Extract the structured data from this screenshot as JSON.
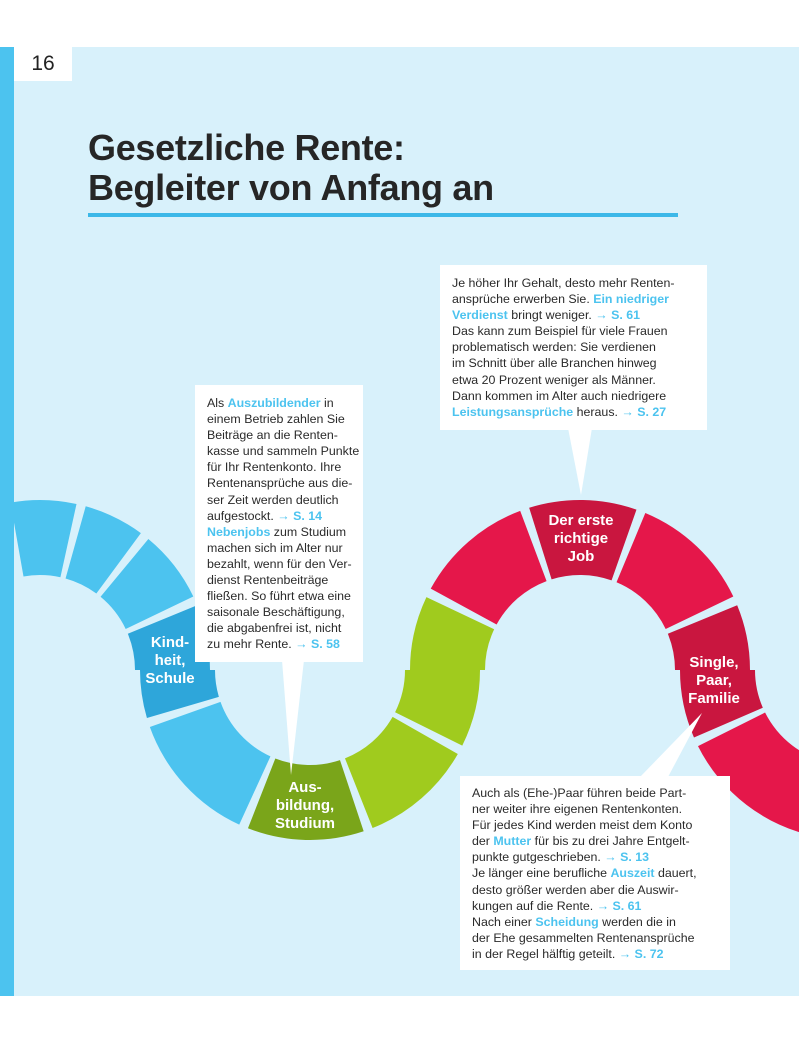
{
  "page_number": "16",
  "title": {
    "line1": "Gesetzliche Rente:",
    "line2": "Begleiter von Anfang an"
  },
  "colors": {
    "background": "#d8f1fb",
    "accent_blue": "#4cc3ef",
    "childhood": "#2ea6da",
    "education": "#7aa51a",
    "lime": "#a0cb1e",
    "red": "#e5174a",
    "dark_red": "#c9163f"
  },
  "stages": [
    {
      "label_lines": [
        "Kind-",
        "heit,",
        "Schule"
      ]
    },
    {
      "label_lines": [
        "Aus-",
        "bildung,",
        "Studium"
      ]
    },
    {
      "label_lines": [
        "Der erste",
        "richtige",
        "Job"
      ]
    },
    {
      "label_lines": [
        "Single,",
        "Paar,",
        "Familie"
      ]
    }
  ],
  "callouts": {
    "job": [
      [
        {
          "t": "Je höher Ihr Gehalt, desto mehr Renten-"
        }
      ],
      [
        {
          "t": "ansprüche erwerben Sie. "
        },
        {
          "t": "Ein niedriger",
          "h": true
        }
      ],
      [
        {
          "t": "Verdienst",
          "h": true
        },
        {
          "t": " bringt weniger. "
        },
        {
          "t": "→ S. 61",
          "h": true
        }
      ],
      [
        {
          "t": "Das kann zum Beispiel für viele Frauen"
        }
      ],
      [
        {
          "t": "problematisch werden: Sie verdienen"
        }
      ],
      [
        {
          "t": "im Schnitt über alle Branchen hinweg"
        }
      ],
      [
        {
          "t": "etwa 20 Prozent weniger als Männer."
        }
      ],
      [
        {
          "t": "Dann kommen im Alter auch niedrigere"
        }
      ],
      [
        {
          "t": "Leistungsansprüche",
          "h": true
        },
        {
          "t": " heraus. "
        },
        {
          "t": "→ S. 27",
          "h": true
        }
      ]
    ],
    "education": [
      [
        {
          "t": "Als "
        },
        {
          "t": "Auszubildender",
          "h": true
        },
        {
          "t": " in"
        }
      ],
      [
        {
          "t": "einem Betrieb zahlen Sie"
        }
      ],
      [
        {
          "t": "Beiträge an die Renten-"
        }
      ],
      [
        {
          "t": "kasse und sammeln Punkte"
        }
      ],
      [
        {
          "t": "für Ihr Rentenkonto. Ihre"
        }
      ],
      [
        {
          "t": "Rentenansprüche aus die-"
        }
      ],
      [
        {
          "t": "ser Zeit werden deutlich"
        }
      ],
      [
        {
          "t": "aufgestockt. "
        },
        {
          "t": "→ S. 14",
          "h": true
        }
      ],
      [
        {
          "t": "Nebenjobs",
          "h": true
        },
        {
          "t": " zum Studium"
        }
      ],
      [
        {
          "t": "machen sich im Alter nur"
        }
      ],
      [
        {
          "t": "bezahlt, wenn für den Ver-"
        }
      ],
      [
        {
          "t": "dienst Rentenbeiträge"
        }
      ],
      [
        {
          "t": "fließen. So führt etwa eine"
        }
      ],
      [
        {
          "t": "saisonale Beschäftigung,"
        }
      ],
      [
        {
          "t": "die abgabenfrei ist, nicht"
        }
      ],
      [
        {
          "t": "zu mehr Rente. "
        },
        {
          "t": "→ S. 58",
          "h": true
        }
      ]
    ],
    "family": [
      [
        {
          "t": "Auch als (Ehe-)Paar führen beide Part-"
        }
      ],
      [
        {
          "t": "ner weiter ihre eigenen Rentenkonten."
        }
      ],
      [
        {
          "t": "Für jedes Kind werden meist dem Konto"
        }
      ],
      [
        {
          "t": "der "
        },
        {
          "t": "Mutter",
          "h": true
        },
        {
          "t": " für bis zu drei Jahre Entgelt-"
        }
      ],
      [
        {
          "t": "punkte gutgeschrieben. "
        },
        {
          "t": "→ S. 13",
          "h": true
        }
      ],
      [
        {
          "t": "Je länger eine berufliche "
        },
        {
          "t": "Auszeit",
          "h": true
        },
        {
          "t": " dauert,"
        }
      ],
      [
        {
          "t": "desto größer werden aber die Auswir-"
        }
      ],
      [
        {
          "t": "kungen auf die Rente. "
        },
        {
          "t": "→ S. 61",
          "h": true
        }
      ],
      [
        {
          "t": "Nach einer "
        },
        {
          "t": "Scheidung",
          "h": true
        },
        {
          "t": " werden die in"
        }
      ],
      [
        {
          "t": "der Ehe gesammelten Rentenansprüche"
        }
      ],
      [
        {
          "t": "in der Regel hälftig geteilt. "
        },
        {
          "t": "→ S. 72",
          "h": true
        }
      ]
    ]
  }
}
